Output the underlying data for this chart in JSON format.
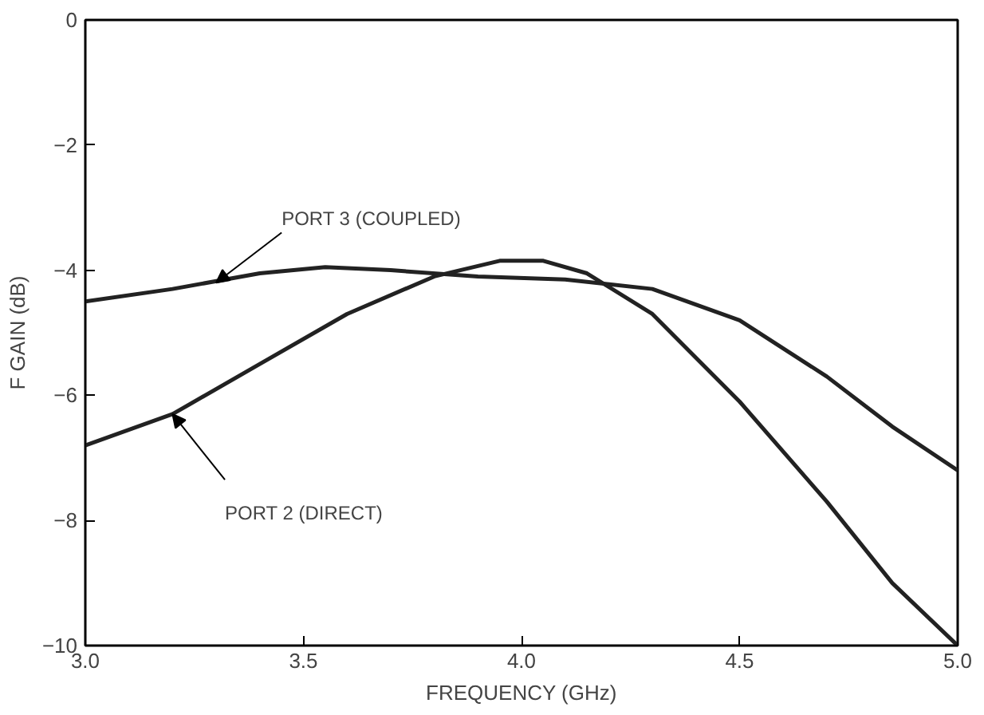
{
  "chart_data": {
    "type": "line",
    "xlabel": "FREQUENCY (GHz)",
    "ylabel": "F GAIN (dB)",
    "xlim": [
      3.0,
      5.0
    ],
    "ylim": [
      -10,
      0
    ],
    "xticks": [
      {
        "value": 3.0,
        "label": "3.0"
      },
      {
        "value": 3.5,
        "label": "3.5"
      },
      {
        "value": 4.0,
        "label": "4.0"
      },
      {
        "value": 4.5,
        "label": "4.5"
      },
      {
        "value": 5.0,
        "label": "5.0"
      }
    ],
    "yticks": [
      0,
      -2,
      -4,
      -6,
      -8,
      -10
    ],
    "grid": false,
    "series": [
      {
        "color": "#222222",
        "x": [
          3.0,
          3.2,
          3.4,
          3.55,
          3.7,
          3.9,
          4.1,
          4.3,
          4.5,
          4.7,
          4.85,
          5.0
        ],
        "values": [
          -4.5,
          -4.3,
          -4.05,
          -3.95,
          -4.0,
          -4.1,
          -4.15,
          -4.3,
          -4.8,
          -5.7,
          -6.5,
          -7.2
        ]
      },
      {
        "color": "#222222",
        "x": [
          3.0,
          3.2,
          3.4,
          3.6,
          3.8,
          3.95,
          4.05,
          4.15,
          4.3,
          4.5,
          4.7,
          4.85,
          5.0
        ],
        "values": [
          -6.8,
          -6.3,
          -5.5,
          -4.7,
          -4.1,
          -3.85,
          -3.85,
          -4.05,
          -4.7,
          -6.1,
          -7.7,
          -9.0,
          -10.0
        ]
      }
    ],
    "annotations": [
      {
        "text": "PORT 3 (COUPLED)",
        "x": 3.3,
        "y": -4.2
      },
      {
        "text": "PORT 2 (DIRECT)",
        "x": 3.2,
        "y": -6.3
      }
    ]
  }
}
